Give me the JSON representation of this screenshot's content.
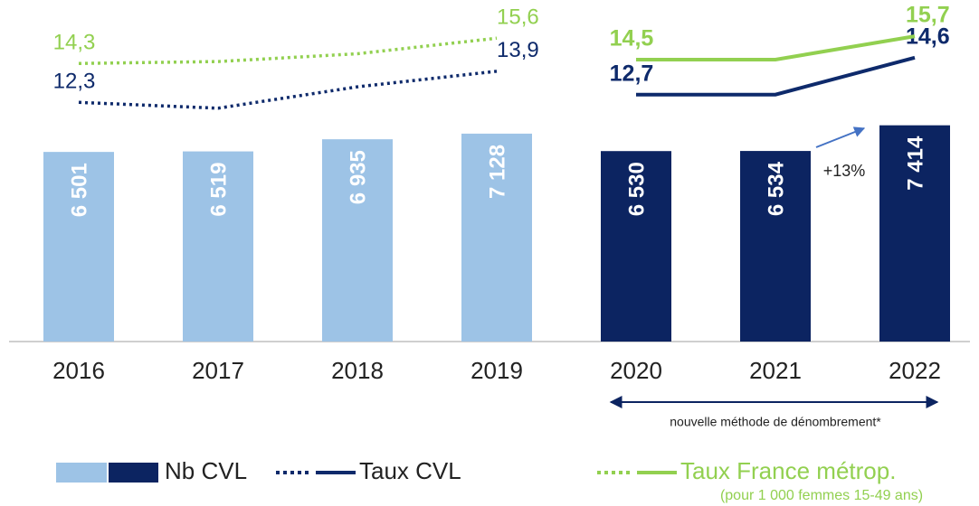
{
  "chart_data": {
    "type": "bar",
    "categories": [
      "2016",
      "2017",
      "2018",
      "2019",
      "2020",
      "2021",
      "2022"
    ],
    "series": [
      {
        "name": "Nb CVL",
        "colors": [
          "#9dc3e6",
          "#9dc3e6",
          "#9dc3e6",
          "#9dc3e6",
          "#0c2461",
          "#0c2461",
          "#0c2461"
        ],
        "values": [
          6501,
          6519,
          6935,
          7128,
          6530,
          6534,
          7414
        ],
        "value_labels": [
          "6 501",
          "6 519",
          "6 935",
          "7 128",
          "6 530",
          "6 534",
          "7 414"
        ]
      },
      {
        "name": "Taux CVL",
        "type": "line",
        "axis": "y2",
        "color": "#0e2a6b",
        "line_styles": [
          "dotted",
          "solid"
        ],
        "values": [
          12.3,
          12.0,
          13.1,
          13.9,
          12.7,
          12.7,
          14.6
        ],
        "value_labels": [
          "12,3",
          null,
          null,
          "13,9",
          "12,7",
          null,
          "14,6"
        ]
      },
      {
        "name": "Taux France métrop.",
        "type": "line",
        "axis": "y2",
        "color": "#92d050",
        "line_styles": [
          "dotted",
          "solid"
        ],
        "values": [
          14.3,
          14.4,
          14.8,
          15.6,
          14.5,
          14.5,
          15.7
        ],
        "value_labels": [
          "14,3",
          null,
          null,
          "15,6",
          "14,5",
          null,
          "15,7"
        ]
      }
    ],
    "ylim": [
      0,
      11400
    ],
    "y2lim": [
      0,
      17.1
    ],
    "method_annotation": {
      "text": "nouvelle méthode de dénombrement*",
      "span": [
        4,
        6
      ]
    },
    "growth_annotation": "+13%",
    "legend_note": "(pour 1 000 femmes 15-49 ans)"
  }
}
